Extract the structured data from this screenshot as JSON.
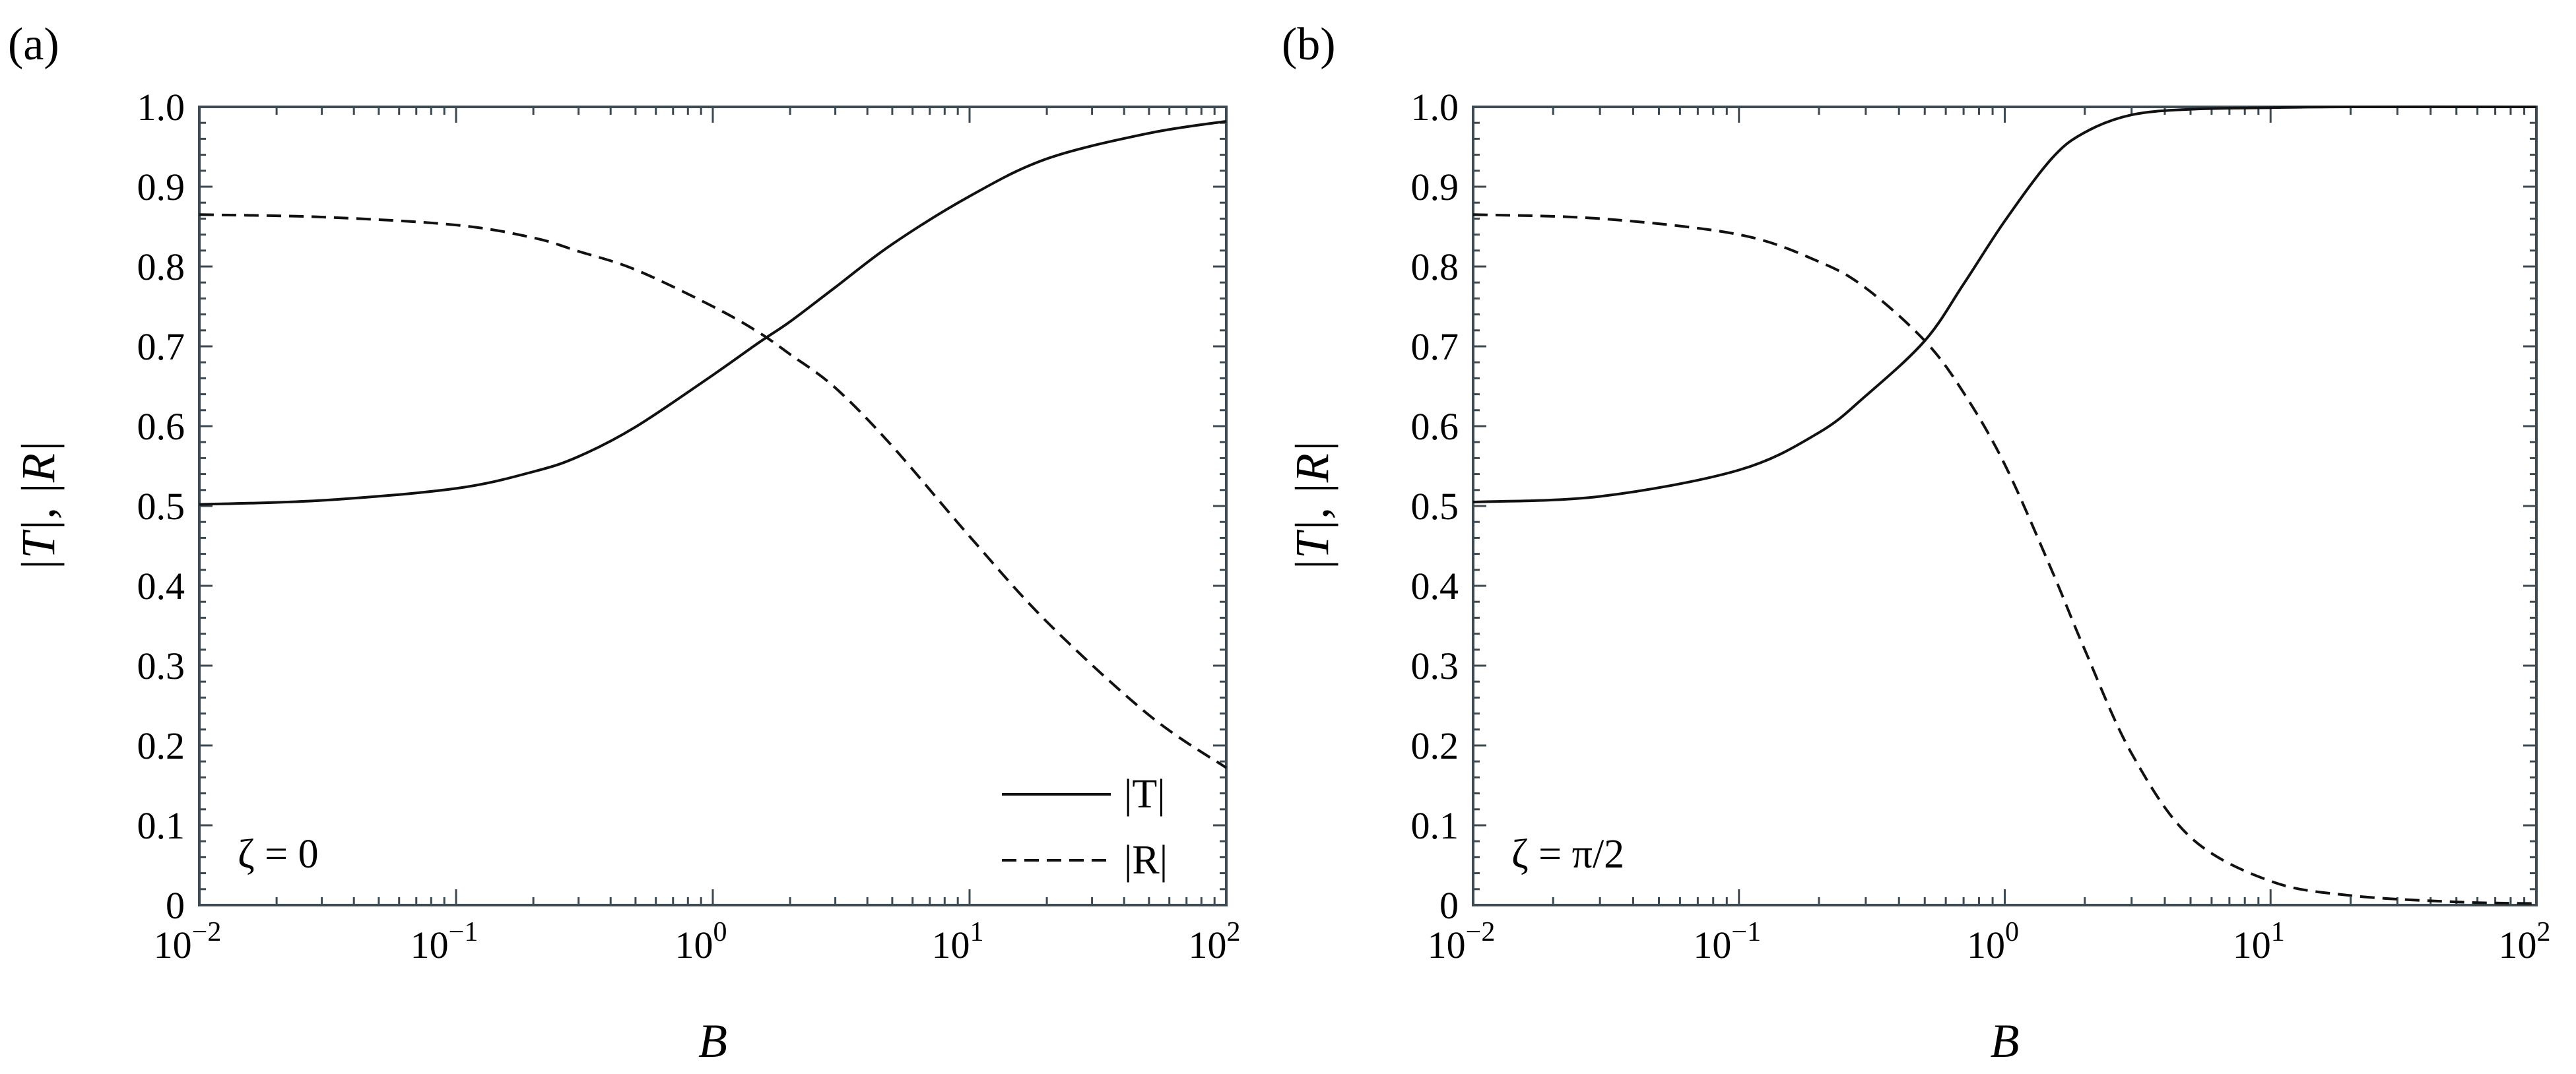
{
  "figure": {
    "panels": [
      {
        "panel_label": "(a)",
        "annotation": "ζ = 0",
        "legend": {
          "solid": "|T|",
          "dashed": "|R|"
        },
        "xlabel": "B",
        "ylabel": "|T|, |R|",
        "x_ticks": [
          {
            "base": "10",
            "exp": "−2"
          },
          {
            "base": "10",
            "exp": "−1"
          },
          {
            "base": "10",
            "exp": "0"
          },
          {
            "base": "10",
            "exp": "1"
          },
          {
            "base": "10",
            "exp": "2"
          }
        ],
        "y_ticks": [
          "0",
          "0.1",
          "0.2",
          "0.3",
          "0.4",
          "0.5",
          "0.6",
          "0.7",
          "0.8",
          "0.9",
          "1.0"
        ]
      },
      {
        "panel_label": "(b)",
        "annotation": "ζ = π/2",
        "xlabel": "B",
        "ylabel": "|T|, |R|",
        "x_ticks": [
          {
            "base": "10",
            "exp": "−2"
          },
          {
            "base": "10",
            "exp": "−1"
          },
          {
            "base": "10",
            "exp": "0"
          },
          {
            "base": "10",
            "exp": "1"
          },
          {
            "base": "10",
            "exp": "2"
          }
        ],
        "y_ticks": [
          "0",
          "0.1",
          "0.2",
          "0.3",
          "0.4",
          "0.5",
          "0.6",
          "0.7",
          "0.8",
          "0.9",
          "1.0"
        ]
      }
    ]
  },
  "chart_data": [
    {
      "type": "line",
      "xscale": "log",
      "xlim": [
        0.01,
        100
      ],
      "ylim": [
        0,
        1.0
      ],
      "xlabel": "B",
      "ylabel": "|T|, |R|",
      "legend_position": "bottom-right",
      "series": [
        {
          "name": "|T|",
          "style": "solid",
          "x": [
            0.01,
            0.03,
            0.1,
            0.2,
            0.3,
            0.5,
            1,
            1.5,
            2,
            3,
            5,
            10,
            20,
            50,
            100
          ],
          "y": [
            0.502,
            0.507,
            0.522,
            0.543,
            0.562,
            0.599,
            0.664,
            0.704,
            0.731,
            0.774,
            0.828,
            0.888,
            0.935,
            0.967,
            0.982
          ]
        },
        {
          "name": "|R|",
          "style": "dashed",
          "x": [
            0.01,
            0.03,
            0.1,
            0.2,
            0.3,
            0.5,
            1,
            1.5,
            2,
            3,
            5,
            10,
            20,
            50,
            100
          ],
          "y": [
            0.865,
            0.862,
            0.852,
            0.836,
            0.819,
            0.796,
            0.75,
            0.718,
            0.69,
            0.648,
            0.575,
            0.462,
            0.355,
            0.238,
            0.172
          ]
        }
      ]
    },
    {
      "type": "line",
      "xscale": "log",
      "xlim": [
        0.01,
        100
      ],
      "ylim": [
        0,
        1.0
      ],
      "xlabel": "B",
      "ylabel": "|T|, |R|",
      "series": [
        {
          "name": "|T|",
          "style": "solid",
          "x": [
            0.01,
            0.03,
            0.1,
            0.2,
            0.3,
            0.5,
            0.7,
            1,
            1.5,
            2,
            3,
            5,
            10,
            20,
            100
          ],
          "y": [
            0.505,
            0.512,
            0.545,
            0.592,
            0.638,
            0.707,
            0.778,
            0.857,
            0.935,
            0.968,
            0.99,
            0.997,
            0.999,
            1.0,
            1.0
          ]
        },
        {
          "name": "|R|",
          "style": "dashed",
          "x": [
            0.01,
            0.03,
            0.1,
            0.2,
            0.3,
            0.5,
            0.7,
            1,
            1.5,
            2,
            3,
            5,
            10,
            20,
            50,
            100
          ],
          "y": [
            0.865,
            0.86,
            0.84,
            0.806,
            0.773,
            0.707,
            0.642,
            0.552,
            0.42,
            0.32,
            0.19,
            0.085,
            0.03,
            0.012,
            0.004,
            0.002
          ]
        }
      ]
    }
  ]
}
